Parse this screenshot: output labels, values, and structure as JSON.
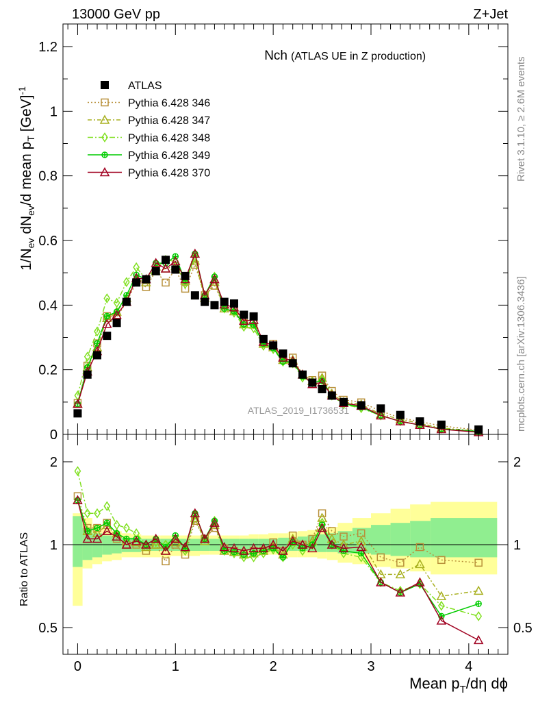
{
  "chart_data": [
    {
      "type": "line",
      "header_left": "13000 GeV pp",
      "header_right": "Z+Jet",
      "title": "Nch",
      "subtitle": "(ATLAS UE in Z production)",
      "ylabel": "1/N_ev dN_ev/d mean p_T [GeV]^-1",
      "ylabel_parts": {
        "a": "1/N",
        "b": "ev",
        "c": " dN",
        "d": "ev",
        "e": "/d mean p",
        "f": "T",
        "g": " [GeV]",
        "h": "-1"
      },
      "xlabel_parts": {
        "a": "Mean p",
        "b": "T",
        "c": "/dη dϕ"
      },
      "xlabel": "Mean p_T/dη dϕ",
      "xlim": [
        -0.15,
        4.4
      ],
      "ylim": [
        0,
        1.27
      ],
      "yticks": [
        0,
        0.2,
        0.4,
        0.6,
        0.8,
        1,
        1.2
      ],
      "ytick_labels": [
        "0",
        "0.2",
        "0.4",
        "0.6",
        "0.8",
        "1",
        "1.2"
      ],
      "xticks": [
        0,
        1,
        2,
        3,
        4
      ],
      "xtick_labels": [
        "0",
        "1",
        "2",
        "3",
        "4"
      ],
      "watermark": "ATLAS_2019_I1736531",
      "side_text_1": "Rivet 3.1.10, ≥ 2.6M events",
      "side_text_2": "mcplots.cern.ch [arXiv:1306.3436]",
      "x": [
        0,
        0.1,
        0.2,
        0.3,
        0.4,
        0.5,
        0.6,
        0.7,
        0.8,
        0.9,
        1.0,
        1.1,
        1.2,
        1.3,
        1.4,
        1.5,
        1.6,
        1.7,
        1.8,
        1.9,
        2.0,
        2.1,
        2.2,
        2.3,
        2.4,
        2.5,
        2.6,
        2.72,
        2.9,
        3.1,
        3.3,
        3.5,
        3.72,
        4.1
      ],
      "data": {
        "name": "ATLAS",
        "color": "#000000",
        "marker": "filled-square",
        "values": [
          0.065,
          0.185,
          0.245,
          0.305,
          0.345,
          0.41,
          0.47,
          0.48,
          0.505,
          0.54,
          0.51,
          0.49,
          0.43,
          0.41,
          0.4,
          0.41,
          0.405,
          0.37,
          0.365,
          0.295,
          0.275,
          0.25,
          0.22,
          0.185,
          0.16,
          0.14,
          0.12,
          0.1,
          0.09,
          0.08,
          0.06,
          0.04,
          0.03,
          0.015
        ]
      },
      "series": [
        {
          "name": "Pythia 6.428 346",
          "color": "#b8903a",
          "marker": "open-square",
          "dash": "2,3",
          "ratio": [
            1.5,
            1.15,
            1.15,
            1.2,
            1.05,
            1.0,
            1.0,
            0.95,
            1.0,
            0.87,
            1.0,
            0.92,
            1.22,
            1.05,
            1.15,
            0.97,
            0.95,
            0.93,
            0.95,
            0.95,
            1.02,
            0.95,
            1.08,
            1.0,
            1.05,
            1.3,
            1.12,
            1.07,
            1.1,
            0.9,
            0.86,
            0.98,
            0.88,
            0.86
          ]
        },
        {
          "name": "Pythia 6.428 347",
          "color": "#a8b020",
          "marker": "open-triangle",
          "dash": "6,3,2,3",
          "ratio": [
            1.45,
            1.12,
            1.1,
            1.18,
            1.1,
            1.03,
            1.02,
            0.98,
            1.0,
            0.95,
            1.02,
            0.97,
            1.25,
            1.03,
            1.18,
            0.95,
            0.94,
            0.92,
            0.93,
            0.95,
            0.98,
            0.92,
            1.05,
            1.0,
            1.03,
            1.25,
            1.05,
            1.0,
            1.03,
            0.78,
            0.78,
            0.85,
            0.65,
            0.68
          ]
        },
        {
          "name": "Pythia 6.428 348",
          "color": "#80e020",
          "marker": "open-diamond",
          "dash": "8,3,2,3",
          "ratio": [
            1.85,
            1.3,
            1.3,
            1.38,
            1.18,
            1.15,
            1.1,
            1.0,
            1.02,
            1.0,
            1.05,
            0.95,
            1.28,
            1.05,
            1.22,
            0.95,
            0.93,
            0.9,
            0.9,
            0.93,
            0.96,
            0.9,
            1.0,
            0.95,
            1.0,
            1.2,
            1.0,
            0.93,
            0.9,
            0.73,
            0.68,
            0.72,
            0.6,
            0.55
          ]
        },
        {
          "name": "Pythia 6.428 349",
          "color": "#00cc00",
          "marker": "open-crosscircle",
          "dash": "",
          "ratio": [
            1.45,
            1.12,
            1.15,
            1.2,
            1.1,
            1.05,
            1.05,
            1.0,
            1.05,
            0.98,
            1.08,
            0.97,
            1.3,
            1.05,
            1.22,
            0.95,
            0.94,
            0.92,
            0.93,
            0.95,
            0.97,
            0.9,
            1.02,
            0.97,
            1.0,
            1.18,
            1.0,
            0.95,
            0.93,
            0.73,
            0.67,
            0.72,
            0.55,
            0.61
          ]
        },
        {
          "name": "Pythia 6.428 370",
          "color": "#a00020",
          "marker": "open-triangle",
          "dash": "",
          "ratio": [
            1.45,
            1.05,
            1.05,
            1.12,
            1.07,
            1.0,
            1.03,
            1.0,
            1.05,
            0.95,
            1.05,
            0.98,
            1.3,
            1.05,
            1.2,
            0.98,
            0.97,
            0.95,
            0.97,
            0.97,
            1.0,
            0.95,
            1.03,
            1.0,
            0.97,
            1.15,
            1.0,
            0.97,
            0.98,
            0.73,
            0.67,
            0.73,
            0.53,
            0.45
          ]
        }
      ]
    },
    {
      "type": "ratio",
      "ylabel": "Ratio to ATLAS",
      "ylim": [
        0.4,
        2.5
      ],
      "yscale": "log",
      "yticks": [
        0.5,
        1,
        2
      ],
      "ytick_labels": [
        "0.5",
        "1",
        "2"
      ],
      "band_stat_sys": {
        "color": "#ffff99",
        "lo": [
          0.6,
          0.82,
          0.85,
          0.87,
          0.88,
          0.9,
          0.9,
          0.9,
          0.9,
          0.9,
          0.91,
          0.91,
          0.91,
          0.92,
          0.92,
          0.92,
          0.92,
          0.92,
          0.92,
          0.92,
          0.92,
          0.91,
          0.9,
          0.9,
          0.9,
          0.89,
          0.88,
          0.86,
          0.85,
          0.83,
          0.82,
          0.8,
          0.78,
          0.78
        ],
        "hi": [
          1.3,
          1.25,
          1.18,
          1.14,
          1.12,
          1.1,
          1.09,
          1.08,
          1.08,
          1.08,
          1.08,
          1.08,
          1.08,
          1.08,
          1.08,
          1.08,
          1.08,
          1.08,
          1.09,
          1.09,
          1.1,
          1.1,
          1.11,
          1.12,
          1.13,
          1.14,
          1.16,
          1.2,
          1.25,
          1.3,
          1.35,
          1.4,
          1.43,
          1.43
        ]
      },
      "band_stat": {
        "color": "#90ee90",
        "lo": [
          0.83,
          0.88,
          0.9,
          0.92,
          0.93,
          0.94,
          0.94,
          0.95,
          0.95,
          0.95,
          0.95,
          0.95,
          0.95,
          0.95,
          0.95,
          0.95,
          0.95,
          0.95,
          0.95,
          0.95,
          0.95,
          0.95,
          0.95,
          0.95,
          0.95,
          0.94,
          0.94,
          0.93,
          0.93,
          0.92,
          0.91,
          0.9,
          0.9,
          0.9
        ],
        "hi": [
          1.27,
          1.15,
          1.1,
          1.08,
          1.07,
          1.06,
          1.06,
          1.05,
          1.05,
          1.05,
          1.05,
          1.05,
          1.05,
          1.05,
          1.05,
          1.05,
          1.05,
          1.05,
          1.05,
          1.05,
          1.05,
          1.06,
          1.06,
          1.07,
          1.08,
          1.09,
          1.1,
          1.12,
          1.15,
          1.18,
          1.2,
          1.22,
          1.25,
          1.25
        ]
      }
    }
  ]
}
